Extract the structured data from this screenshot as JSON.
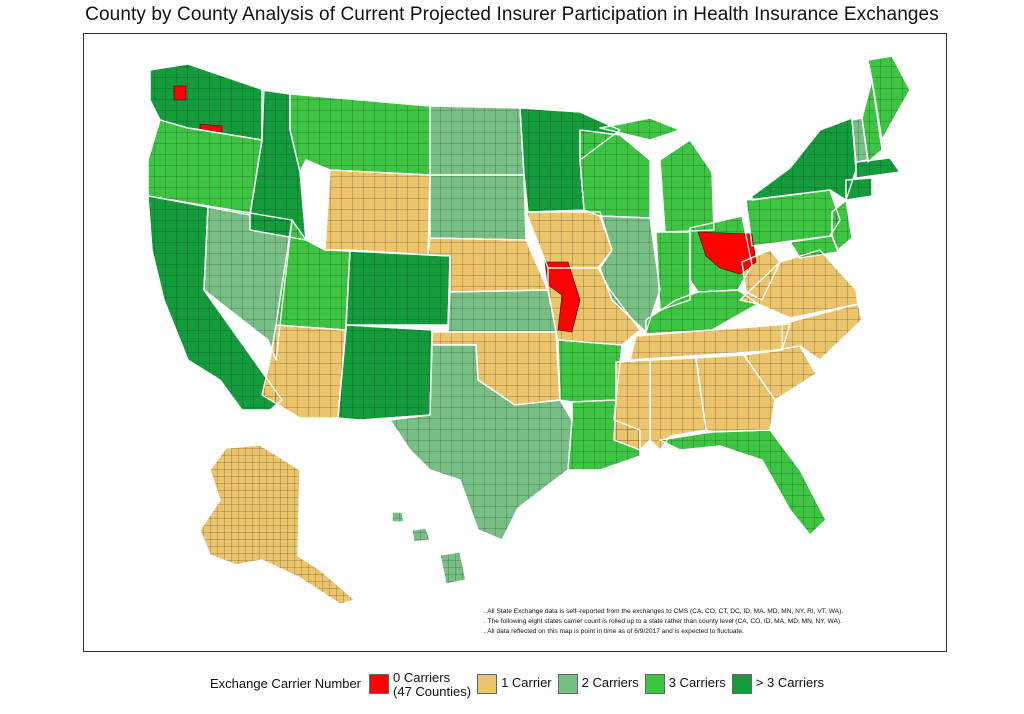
{
  "title": "County by County Analysis of Current Projected Insurer Participation in Health Insurance Exchanges",
  "notes": [
    ". All State Exchange data is self–reported from the exchanges to CMS (CA, CO, CT, DC, ID, MA, MD, MN, NY, RI, VT, WA).",
    ". The following eight states carrier count is rolled up to a state rather than county level (CA, CO, ID, MA, MD, MN, NY, WA).",
    ". All data reflected on this map is point in time as of 6/9/2017 and is expected to fluctuate."
  ],
  "legend": {
    "title": "Exchange Carrier Number",
    "items": [
      {
        "label_line1": "0 Carriers",
        "label_line2": "(47 Counties)",
        "color": "#ff0000"
      },
      {
        "label_line1": "1 Carrier",
        "label_line2": "",
        "color": "#ebc46b"
      },
      {
        "label_line1": "2 Carriers",
        "label_line2": "",
        "color": "#78bf86"
      },
      {
        "label_line1": "3 Carriers",
        "label_line2": "",
        "color": "#3dc442"
      },
      {
        "label_line1": "> 3 Carriers",
        "label_line2": "",
        "color": "#149c3c"
      }
    ]
  },
  "map_data": {
    "state_carriers": [
      {
        "state": "WA",
        "carriers": ">3"
      },
      {
        "state": "OR",
        "carriers": "3"
      },
      {
        "state": "CA",
        "carriers": ">3"
      },
      {
        "state": "NV",
        "carriers": "2"
      },
      {
        "state": "ID",
        "carriers": ">3"
      },
      {
        "state": "MT",
        "carriers": "3"
      },
      {
        "state": "WY",
        "carriers": "1"
      },
      {
        "state": "UT",
        "carriers": "3"
      },
      {
        "state": "AZ",
        "carriers": "1"
      },
      {
        "state": "CO",
        "carriers": ">3"
      },
      {
        "state": "NM",
        "carriers": ">3"
      },
      {
        "state": "ND",
        "carriers": "2"
      },
      {
        "state": "SD",
        "carriers": "2"
      },
      {
        "state": "NE",
        "carriers": "1"
      },
      {
        "state": "KS",
        "carriers": "2"
      },
      {
        "state": "OK",
        "carriers": "1"
      },
      {
        "state": "TX",
        "carriers": "2"
      },
      {
        "state": "MN",
        "carriers": ">3"
      },
      {
        "state": "IA",
        "carriers": "1"
      },
      {
        "state": "MO",
        "carriers": "1"
      },
      {
        "state": "AR",
        "carriers": "3"
      },
      {
        "state": "LA",
        "carriers": "3"
      },
      {
        "state": "WI",
        "carriers": "3"
      },
      {
        "state": "IL",
        "carriers": "2"
      },
      {
        "state": "MI",
        "carriers": "3"
      },
      {
        "state": "IN",
        "carriers": "3"
      },
      {
        "state": "OH",
        "carriers": "3"
      },
      {
        "state": "KY",
        "carriers": "3"
      },
      {
        "state": "TN",
        "carriers": "1"
      },
      {
        "state": "MS",
        "carriers": "1"
      },
      {
        "state": "AL",
        "carriers": "1"
      },
      {
        "state": "GA",
        "carriers": "1"
      },
      {
        "state": "FL",
        "carriers": "3"
      },
      {
        "state": "SC",
        "carriers": "1"
      },
      {
        "state": "NC",
        "carriers": "1"
      },
      {
        "state": "VA",
        "carriers": "1"
      },
      {
        "state": "WV",
        "carriers": "1"
      },
      {
        "state": "PA",
        "carriers": "3"
      },
      {
        "state": "NY",
        "carriers": ">3"
      },
      {
        "state": "VT",
        "carriers": "2"
      },
      {
        "state": "NH",
        "carriers": "3"
      },
      {
        "state": "ME",
        "carriers": "3"
      },
      {
        "state": "MA",
        "carriers": ">3"
      },
      {
        "state": "CT",
        "carriers": ">3"
      },
      {
        "state": "NJ",
        "carriers": "3"
      },
      {
        "state": "MD",
        "carriers": "3"
      },
      {
        "state": "AK",
        "carriers": "1"
      },
      {
        "state": "HI",
        "carriers": "2"
      }
    ]
  }
}
